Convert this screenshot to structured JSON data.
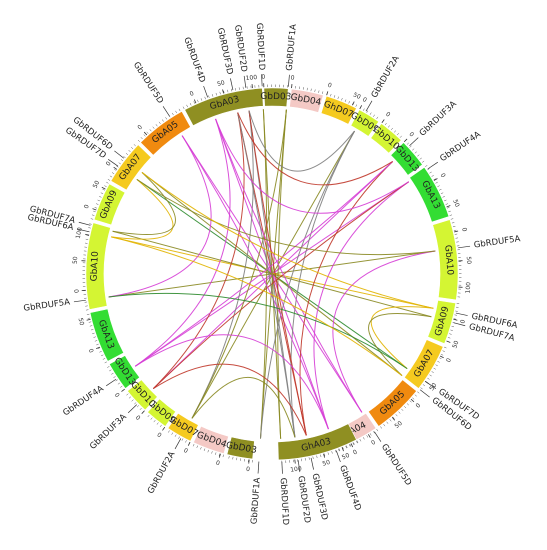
{
  "segments": [
    {
      "label": "GbA03",
      "start": 332,
      "end": 357,
      "fill": "#8f8f22",
      "ticks": [
        {
          "deg": 336,
          "val": "0"
        },
        {
          "deg": 345,
          "val": "50"
        },
        {
          "deg": 354,
          "val": "100"
        }
      ]
    },
    {
      "label": "GbD03",
      "start": 357.5,
      "end": 365,
      "fill": "#8f8f22",
      "ticks": [
        {
          "deg": 357.5,
          "val": "0"
        }
      ]
    },
    {
      "label": "GbD04",
      "start": 366,
      "end": 376,
      "fill": "#f4c9c5",
      "ticks": [
        {
          "deg": 366,
          "val": "0"
        }
      ]
    },
    {
      "label": "GhD07",
      "start": 377,
      "end": 387,
      "fill": "#f5ca1f",
      "ticks": [
        {
          "deg": 377,
          "val": "0"
        },
        {
          "deg": 385.5,
          "val": "50"
        }
      ]
    },
    {
      "label": "GbD09",
      "start": 388,
      "end": 395,
      "fill": "#d4f533",
      "ticks": [
        {
          "deg": 388,
          "val": "0"
        }
      ]
    },
    {
      "label": "GbD10",
      "start": 396,
      "end": 404,
      "fill": "#d4f533",
      "ticks": [
        {
          "deg": 396,
          "val": "0"
        }
      ]
    },
    {
      "label": "GbD13",
      "start": 405,
      "end": 414,
      "fill": "#33dd33",
      "ticks": [
        {
          "deg": 405,
          "val": "0"
        }
      ]
    },
    {
      "label": "GbA13",
      "start": 415,
      "end": 432,
      "fill": "#33dd33",
      "ticks": [
        {
          "deg": 420,
          "val": "0"
        },
        {
          "deg": 429,
          "val": "50"
        }
      ]
    },
    {
      "label": "GbA10",
      "start": 433,
      "end": 458,
      "fill": "#d4f533",
      "ticks": [
        {
          "deg": 437,
          "val": "0"
        },
        {
          "deg": 446,
          "val": "50"
        },
        {
          "deg": 454,
          "val": "100"
        }
      ]
    },
    {
      "label": "GbA09",
      "start": 459,
      "end": 472,
      "fill": "#d4f533",
      "ticks": [
        {
          "deg": 464,
          "val": "0"
        },
        {
          "deg": 471,
          "val": "50"
        }
      ]
    },
    {
      "label": "GbA07",
      "start": 473,
      "end": 488,
      "fill": "#f5ca1f",
      "ticks": [
        {
          "deg": 476,
          "val": "0"
        },
        {
          "deg": 485,
          "val": "50"
        }
      ]
    },
    {
      "label": "GbA05",
      "start": 489,
      "end": 505,
      "fill": "#f08a0f",
      "ticks": [
        {
          "deg": 492,
          "val": "0"
        },
        {
          "deg": 500,
          "val": "50"
        }
      ]
    },
    {
      "label": "GbA04",
      "start": 506,
      "end": 520,
      "fill": "#f4c9c5",
      "ticks": [
        {
          "deg": 509,
          "val": "0"
        },
        {
          "deg": 518,
          "val": "50"
        }
      ]
    },
    {
      "label": "GhA03",
      "start": 153,
      "end": 178,
      "fill": "#8f8f22",
      "ticks": [
        {
          "deg": 155,
          "val": "0"
        },
        {
          "deg": 164,
          "val": "50"
        },
        {
          "deg": 173,
          "val": "100"
        }
      ]
    },
    {
      "label": "GbD03",
      "start": 186,
      "end": 194,
      "fill": "#8f8f22",
      "ticks": [
        {
          "deg": 187,
          "val": "0"
        }
      ]
    },
    {
      "label": "GbD04",
      "start": 195,
      "end": 205,
      "fill": "#f4c9c5",
      "ticks": [
        {
          "deg": 196,
          "val": "0"
        }
      ]
    },
    {
      "label": "GbD07",
      "start": 206,
      "end": 214,
      "fill": "#f5ca1f",
      "ticks": [
        {
          "deg": 206,
          "val": "0"
        }
      ]
    },
    {
      "label": "GbD09",
      "start": 215,
      "end": 222,
      "fill": "#d4f533",
      "ticks": [
        {
          "deg": 215,
          "val": "0"
        }
      ]
    },
    {
      "label": "GbD10",
      "start": 223,
      "end": 231,
      "fill": "#d4f533",
      "ticks": [
        {
          "deg": 223,
          "val": "0"
        }
      ]
    },
    {
      "label": "GbD13",
      "start": 232,
      "end": 241,
      "fill": "#33dd33",
      "ticks": [
        {
          "deg": 232,
          "val": "0"
        }
      ]
    },
    {
      "label": "GbA13",
      "start": 242,
      "end": 258,
      "fill": "#33dd33",
      "ticks": [
        {
          "deg": 247,
          "val": "0"
        },
        {
          "deg": 256,
          "val": "50"
        }
      ]
    },
    {
      "label": "GbA10",
      "start": 259,
      "end": 286,
      "fill": "#d4f533",
      "ticks": [
        {
          "deg": 265,
          "val": "0"
        },
        {
          "deg": 274,
          "val": "50"
        },
        {
          "deg": 282,
          "val": "100"
        }
      ]
    },
    {
      "label": "GbA09",
      "start": 287,
      "end": 299,
      "fill": "#d4f533",
      "ticks": [
        {
          "deg": 290,
          "val": "0"
        },
        {
          "deg": 297,
          "val": "50"
        }
      ]
    },
    {
      "label": "GbA07",
      "start": 300,
      "end": 314,
      "fill": "#f5ca1f",
      "ticks": [
        {
          "deg": 304,
          "val": "0"
        }
      ]
    },
    {
      "label": "GbA05",
      "start": 315,
      "end": 331,
      "fill": "#f08a0f",
      "ticks": [
        {
          "deg": 318,
          "val": "0"
        }
      ]
    }
  ],
  "genes": [
    {
      "label": "GbRDUF1A",
      "deg": 5
    },
    {
      "label": "GbRDUF2A",
      "deg": 30
    },
    {
      "label": "GbRDUF3A",
      "deg": 47
    },
    {
      "label": "GbRDUF4A",
      "deg": 56
    },
    {
      "label": "GbRDUF5A",
      "deg": 82
    },
    {
      "label": "GbRDUF6A",
      "deg": 102
    },
    {
      "label": "GbRDUF7A",
      "deg": 105
    },
    {
      "label": "GbRDUF7D",
      "deg": 125
    },
    {
      "label": "GbRDUF6D",
      "deg": 128
    },
    {
      "label": "GbRDUF5D",
      "deg": 147
    },
    {
      "label": "GbRDUF4D",
      "deg": 160
    },
    {
      "label": "GbRDUF3D",
      "deg": 168
    },
    {
      "label": "GbRDUF2D",
      "deg": 172
    },
    {
      "label": "GbRDUF1D",
      "deg": 177
    },
    {
      "label": "GbRDUF1A",
      "deg": 184
    },
    {
      "label": "GbRDUF2A",
      "deg": 209
    },
    {
      "label": "GbRDUF3A",
      "deg": 226
    },
    {
      "label": "GbRDUF4A",
      "deg": 236
    },
    {
      "label": "GbRDUF5A",
      "deg": 262
    },
    {
      "label": "GbRDUF6A",
      "deg": 283
    },
    {
      "label": "GbRDUF7A",
      "deg": 285
    },
    {
      "label": "GbRDUF7D",
      "deg": 305
    },
    {
      "label": "GbRDUF6D",
      "deg": 308
    },
    {
      "label": "GbRDUF5D",
      "deg": 327
    },
    {
      "label": "GbRDUF4D",
      "deg": 340
    },
    {
      "label": "GbRDUF3D",
      "deg": 348
    },
    {
      "label": "GbRDUF2D",
      "deg": 352
    },
    {
      "label": "GbRDUF1D",
      "deg": 357
    }
  ],
  "links": [
    {
      "a": 5,
      "b": 184,
      "color": "#8a8a22"
    },
    {
      "a": 30,
      "b": 209,
      "color": "#8a8a22"
    },
    {
      "a": 47,
      "b": 226,
      "color": "#d63fd6"
    },
    {
      "a": 56,
      "b": 236,
      "color": "#d63fd6"
    },
    {
      "a": 82,
      "b": 262,
      "color": "#8a8a22"
    },
    {
      "a": 102,
      "b": 283,
      "color": "#e1b400"
    },
    {
      "a": 105,
      "b": 285,
      "color": "#8a8a22"
    },
    {
      "a": 125,
      "b": 305,
      "color": "#2e8b2e"
    },
    {
      "a": 128,
      "b": 308,
      "color": "#8a8a22"
    },
    {
      "a": 147,
      "b": 327,
      "color": "#d63fd6"
    },
    {
      "a": 160,
      "b": 340,
      "color": "#d63fd6"
    },
    {
      "a": 168,
      "b": 348,
      "color": "#c0392b"
    },
    {
      "a": 172,
      "b": 352,
      "color": "#7f7f7f"
    },
    {
      "a": 177,
      "b": 357,
      "color": "#8a8a22"
    },
    {
      "a": 5,
      "b": 177,
      "color": "#8a8a22"
    },
    {
      "a": 30,
      "b": 172,
      "color": "#7f7f7f"
    },
    {
      "a": 47,
      "b": 168,
      "color": "#c0392b"
    },
    {
      "a": 56,
      "b": 160,
      "color": "#d63fd6"
    },
    {
      "a": 82,
      "b": 147,
      "color": "#d63fd6"
    },
    {
      "a": 102,
      "b": 125,
      "color": "#e1b400"
    },
    {
      "a": 105,
      "b": 128,
      "color": "#8a8a22"
    },
    {
      "a": 184,
      "b": 357,
      "color": "#8a8a22"
    },
    {
      "a": 209,
      "b": 352,
      "color": "#7f7f7f"
    },
    {
      "a": 226,
      "b": 348,
      "color": "#c0392b"
    },
    {
      "a": 236,
      "b": 340,
      "color": "#d63fd6"
    },
    {
      "a": 262,
      "b": 327,
      "color": "#d63fd6"
    },
    {
      "a": 283,
      "b": 305,
      "color": "#e1b400"
    },
    {
      "a": 285,
      "b": 308,
      "color": "#8a8a22"
    },
    {
      "a": 5,
      "b": 209,
      "color": "#8a8a22"
    },
    {
      "a": 30,
      "b": 184,
      "color": "#7f7f7f"
    },
    {
      "a": 47,
      "b": 236,
      "color": "#d63fd6"
    },
    {
      "a": 56,
      "b": 226,
      "color": "#c0392b"
    },
    {
      "a": 147,
      "b": 340,
      "color": "#d63fd6"
    },
    {
      "a": 160,
      "b": 327,
      "color": "#d63fd6"
    },
    {
      "a": 168,
      "b": 352,
      "color": "#c0392b"
    },
    {
      "a": 172,
      "b": 348,
      "color": "#7f7f7f"
    },
    {
      "a": 82,
      "b": 305,
      "color": "#8a8a22"
    },
    {
      "a": 125,
      "b": 262,
      "color": "#2e8b2e"
    },
    {
      "a": 102,
      "b": 308,
      "color": "#e1b400"
    },
    {
      "a": 128,
      "b": 283,
      "color": "#e1b400"
    },
    {
      "a": 30,
      "b": 352,
      "color": "#7f7f7f"
    },
    {
      "a": 209,
      "b": 172,
      "color": "#8a8a22"
    },
    {
      "a": 56,
      "b": 340,
      "color": "#d63fd6"
    },
    {
      "a": 236,
      "b": 160,
      "color": "#d63fd6"
    },
    {
      "a": 47,
      "b": 348,
      "color": "#c0392b"
    },
    {
      "a": 226,
      "b": 168,
      "color": "#c0392b"
    }
  ]
}
